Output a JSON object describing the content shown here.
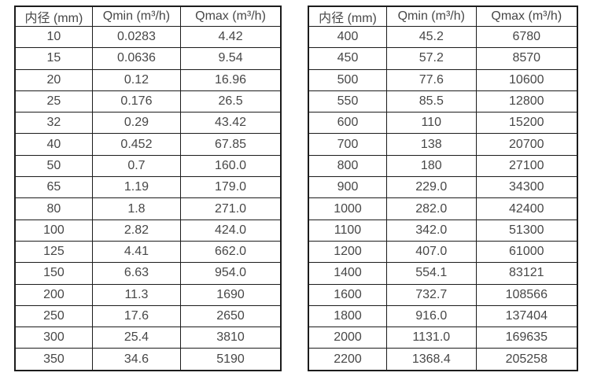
{
  "page": {
    "background": "#ffffff",
    "text_color": "#474747",
    "border_color": "#1c1c1c"
  },
  "tables": [
    {
      "name": "flow-range-table-small-diameters",
      "headers": [
        "内径 (mm)",
        "Qmin (m³/h)",
        "Qmax (m³/h)"
      ],
      "rows": [
        [
          "10",
          "0.0283",
          "4.42"
        ],
        [
          "15",
          "0.0636",
          "9.54"
        ],
        [
          "20",
          "0.12",
          "16.96"
        ],
        [
          "25",
          "0.176",
          "26.5"
        ],
        [
          "32",
          "0.29",
          "43.42"
        ],
        [
          "40",
          "0.452",
          "67.85"
        ],
        [
          "50",
          "0.7",
          "160.0"
        ],
        [
          "65",
          "1.19",
          "179.0"
        ],
        [
          "80",
          "1.8",
          "271.0"
        ],
        [
          "100",
          "2.82",
          "424.0"
        ],
        [
          "125",
          "4.41",
          "662.0"
        ],
        [
          "150",
          "6.63",
          "954.0"
        ],
        [
          "200",
          "11.3",
          "1690"
        ],
        [
          "250",
          "17.6",
          "2650"
        ],
        [
          "300",
          "25.4",
          "3810"
        ],
        [
          "350",
          "34.6",
          "5190"
        ]
      ]
    },
    {
      "name": "flow-range-table-large-diameters",
      "headers": [
        "内径 (mm)",
        "Qmin (m³/h)",
        "Qmax (m³/h)"
      ],
      "rows": [
        [
          "400",
          "45.2",
          "6780"
        ],
        [
          "450",
          "57.2",
          "8570"
        ],
        [
          "500",
          "77.6",
          "10600"
        ],
        [
          "550",
          "85.5",
          "12800"
        ],
        [
          "600",
          "110",
          "15200"
        ],
        [
          "700",
          "138",
          "20700"
        ],
        [
          "800",
          "180",
          "27100"
        ],
        [
          "900",
          "229.0",
          "34300"
        ],
        [
          "1000",
          "282.0",
          "42400"
        ],
        [
          "1100",
          "342.0",
          "51300"
        ],
        [
          "1200",
          "407.0",
          "61000"
        ],
        [
          "1400",
          "554.1",
          "83121"
        ],
        [
          "1600",
          "732.7",
          "108566"
        ],
        [
          "1800",
          "916.0",
          "137404"
        ],
        [
          "2000",
          "1131.0",
          "169635"
        ],
        [
          "2200",
          "1368.4",
          "205258"
        ]
      ]
    }
  ]
}
